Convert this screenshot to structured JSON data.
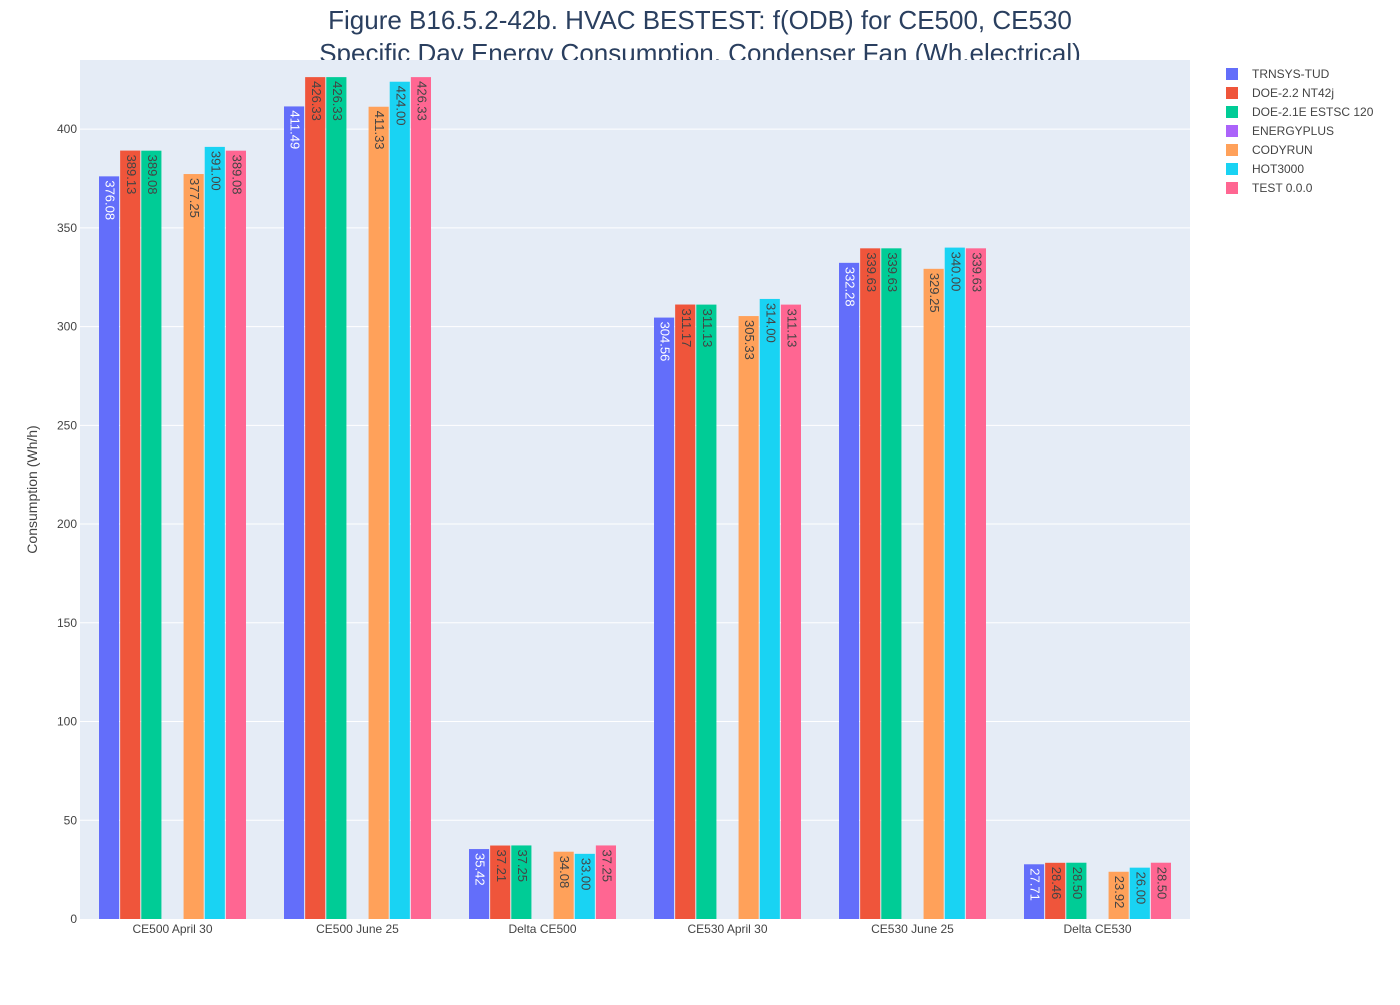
{
  "chart_data": {
    "type": "bar",
    "title": "Figure B16.5.2-42b. HVAC BESTEST: f(ODB) for CE500, CE530",
    "subtitle": "Specific Day Energy Consumption, Condenser Fan (Wh,electrical)",
    "xlabel": "",
    "ylabel": "Consumption (Wh/h)",
    "ylim": [
      0,
      435
    ],
    "yticks": [
      0,
      50,
      100,
      150,
      200,
      250,
      300,
      350,
      400
    ],
    "grid": true,
    "legend_position": "top-right",
    "categories": [
      "CE500 April 30",
      "CE500 June 25",
      "Delta CE500",
      "CE530 April 30",
      "CE530 June 25",
      "Delta CE530"
    ],
    "series": [
      {
        "name": "TRNSYS-TUD",
        "color": "#636efa",
        "label_color": "#ffffff",
        "values": [
          376.08,
          411.49,
          35.42,
          304.56,
          332.28,
          27.71
        ],
        "labels": [
          "376.08",
          "411.49",
          "35.42",
          "304.56",
          "332.28",
          "27.71"
        ]
      },
      {
        "name": "DOE-2.2 NT42j",
        "color": "#ef553b",
        "label_color": "#444444",
        "values": [
          389.13,
          426.33,
          37.21,
          311.17,
          339.63,
          28.46
        ],
        "labels": [
          "389.13",
          "426.33",
          "37.21",
          "311.17",
          "339.63",
          "28.46"
        ]
      },
      {
        "name": "DOE-2.1E ESTSC 120",
        "color": "#00cc96",
        "label_color": "#444444",
        "values": [
          389.08,
          426.33,
          37.25,
          311.13,
          339.63,
          28.5
        ],
        "labels": [
          "389.08",
          "426.33",
          "37.25",
          "311.13",
          "339.63",
          "28.50"
        ]
      },
      {
        "name": "ENERGYPLUS",
        "color": "#ab63fa",
        "label_color": "#444444",
        "values": [
          null,
          null,
          null,
          null,
          null,
          null
        ],
        "labels": [
          null,
          null,
          null,
          null,
          null,
          null
        ]
      },
      {
        "name": "CODYRUN",
        "color": "#ffa15a",
        "label_color": "#444444",
        "values": [
          377.25,
          411.33,
          34.08,
          305.33,
          329.25,
          23.92
        ],
        "labels": [
          "377.25",
          "411.33",
          "34.08",
          "305.33",
          "329.25",
          "23.92"
        ]
      },
      {
        "name": "HOT3000",
        "color": "#19d3f3",
        "label_color": "#444444",
        "values": [
          391.0,
          424.0,
          33.0,
          314.0,
          340.0,
          26.0
        ],
        "labels": [
          "391.00",
          "424.00",
          "33.00",
          "314.00",
          "340.00",
          "26.00"
        ]
      },
      {
        "name": "TEST 0.0.0",
        "color": "#ff6692",
        "label_color": "#444444",
        "values": [
          389.08,
          426.33,
          37.25,
          311.13,
          339.63,
          28.5
        ],
        "labels": [
          "389.08",
          "426.33",
          "37.25",
          "311.13",
          "339.63",
          "28.50"
        ]
      }
    ]
  }
}
